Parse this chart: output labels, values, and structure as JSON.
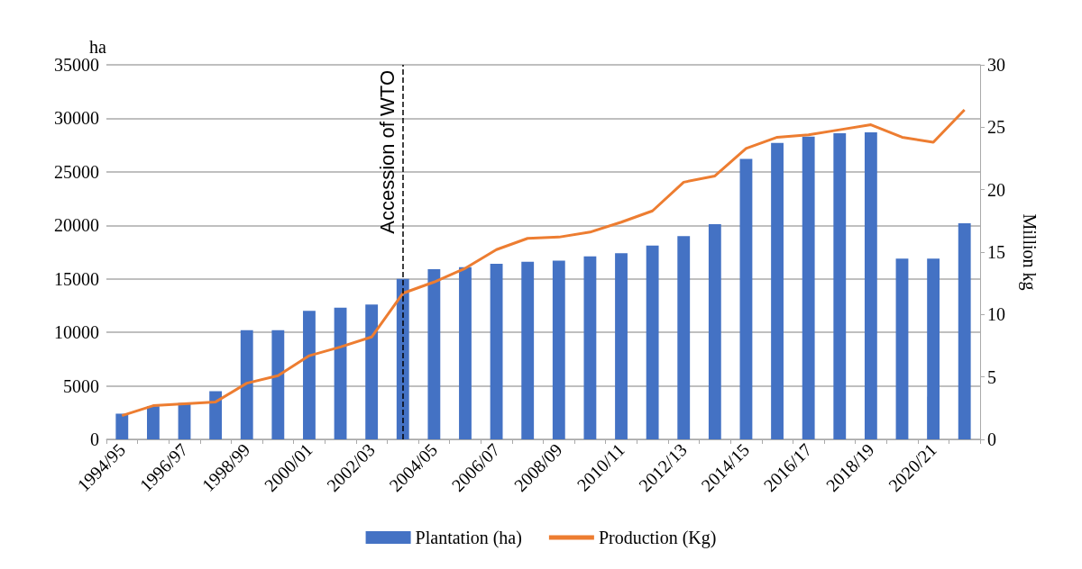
{
  "chart_data": {
    "type": "bar",
    "ylabel": "ha",
    "y2label": "Million kg",
    "categories": [
      "1994/95",
      null,
      "1996/97",
      null,
      "1998/99",
      null,
      "2000/01",
      null,
      "2002/03",
      null,
      "2004/05",
      null,
      "2006/07",
      null,
      "2008/09",
      null,
      "2010/11",
      null,
      "2012/13",
      null,
      "2014/15",
      null,
      "2016/17",
      null,
      "2018/19",
      null,
      "2020/21",
      null
    ],
    "series": [
      {
        "name": "Plantation (ha)",
        "color": "#4472c4",
        "values": [
          2400,
          3100,
          3400,
          4500,
          10200,
          10200,
          12000,
          12300,
          12600,
          15000,
          15900,
          16100,
          16400,
          16600,
          16700,
          17100,
          17400,
          18100,
          19000,
          20100,
          26200,
          27700,
          28300,
          28600,
          28700,
          16900,
          16900,
          20200
        ]
      },
      {
        "name": "Production (Kg)",
        "type": "line",
        "axis": "y2",
        "color": "#ed7d31",
        "values": [
          1.9,
          2.7,
          2.85,
          3.0,
          4.5,
          5.1,
          6.7,
          7.4,
          8.2,
          11.7,
          12.6,
          13.7,
          15.2,
          16.1,
          16.2,
          16.6,
          17.4,
          18.3,
          20.6,
          21.1,
          23.3,
          24.2,
          24.4,
          24.8,
          25.2,
          24.2,
          23.8,
          26.4
        ]
      }
    ],
    "ylim": [
      0,
      35000
    ],
    "yticks": [
      0,
      5000,
      10000,
      15000,
      20000,
      25000,
      30000,
      35000
    ],
    "y2lim": [
      0,
      30
    ],
    "y2ticks": [
      0,
      5,
      10,
      15,
      20,
      25,
      30
    ],
    "annotations": [
      "Accession of WTO"
    ],
    "grid": "y",
    "legend": "bottom",
    "marker": "none"
  }
}
